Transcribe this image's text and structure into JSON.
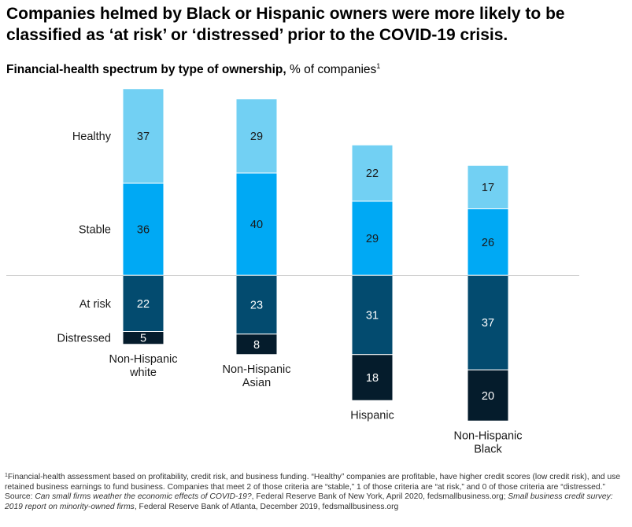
{
  "title": "Companies helmed by Black or Hispanic owners were more likely to be classified as ‘at risk’ or ‘distressed’ prior to the COVID-19 crisis.",
  "subtitle": {
    "bold": "Financial-health spectrum by type of ownership,",
    "rest": " % of companies",
    "footnote_mark": "1"
  },
  "chart_data": {
    "type": "bar",
    "stacked": "diverging",
    "baseline_between": [
      "Stable",
      "At risk"
    ],
    "categories": [
      [
        "Non-Hispanic",
        "white"
      ],
      [
        "Non-Hispanic",
        "Asian"
      ],
      [
        "Hispanic"
      ],
      [
        "Non-Hispanic",
        "Black"
      ]
    ],
    "series": [
      {
        "name": "Healthy",
        "values": [
          37,
          29,
          22,
          17
        ],
        "color": "#72d0f3",
        "label_color": "#1a1a1a"
      },
      {
        "name": "Stable",
        "values": [
          36,
          40,
          29,
          26
        ],
        "color": "#00a9f4",
        "label_color": "#1a1a1a"
      },
      {
        "name": "At risk",
        "values": [
          22,
          23,
          31,
          37
        ],
        "color": "#034b6f",
        "label_color": "#ffffff"
      },
      {
        "name": "Distressed",
        "values": [
          5,
          8,
          18,
          20
        ],
        "color": "#051c2c",
        "label_color": "#ffffff"
      }
    ]
  },
  "footnotes": {
    "mark": "1",
    "note": "Financial-health assessment based on profitability, credit risk, and business funding. “Healthy” companies are profitable, have higher credit scores (low credit risk), and use retained business earnings to fund business. Companies that meet 2 of those criteria are “stable,” 1 of those criteria are “at risk,” and 0 of those criteria are “distressed.”",
    "source_prefix": "Source: ",
    "source_1_title": "Can small firms weather the economic effects of COVID-19?",
    "source_1_rest": ", Federal Reserve Bank of New York, April 2020, fedsmallbusiness.org; ",
    "source_2_title": "Small business credit survey: 2019 report on minority-owned firms",
    "source_2_rest": ", Federal Reserve Bank of Atlanta, December 2019, fedsmallbusiness.org"
  }
}
